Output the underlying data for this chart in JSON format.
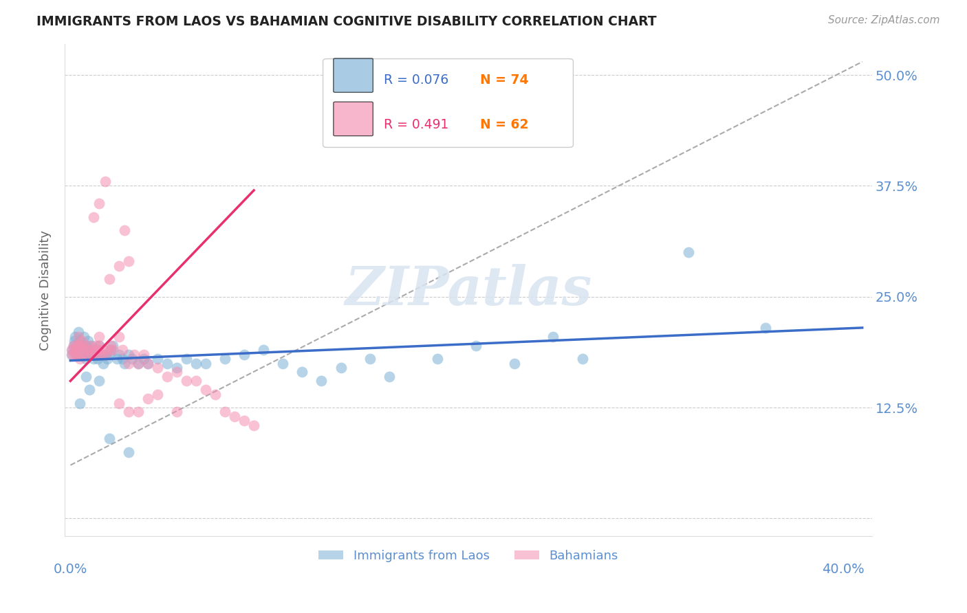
{
  "title": "IMMIGRANTS FROM LAOS VS BAHAMIAN COGNITIVE DISABILITY CORRELATION CHART",
  "source": "Source: ZipAtlas.com",
  "ylabel": "Cognitive Disability",
  "y_ticks": [
    0.0,
    0.125,
    0.25,
    0.375,
    0.5
  ],
  "y_tick_labels": [
    "",
    "12.5%",
    "25.0%",
    "37.5%",
    "50.0%"
  ],
  "x_min": -0.003,
  "x_max": 0.415,
  "y_min": -0.02,
  "y_max": 0.535,
  "watermark": "ZIPatlas",
  "legend_blue_label": "Immigrants from Laos",
  "legend_pink_label": "Bahamians",
  "legend_blue_r": "R = 0.076",
  "legend_blue_n": "N = 74",
  "legend_pink_r": "R = 0.491",
  "legend_pink_n": "N = 62",
  "blue_color": "#7BAFD4",
  "pink_color": "#F48FB1",
  "blue_line_color": "#3B6DC8",
  "pink_line_color": "#E83070",
  "axis_label_color": "#5B8FD0",
  "grid_color": "#CCCCCC",
  "title_color": "#222222",
  "blue_scatter_x": [
    0.0005,
    0.001,
    0.0015,
    0.002,
    0.0025,
    0.003,
    0.0035,
    0.004,
    0.004,
    0.005,
    0.005,
    0.006,
    0.006,
    0.007,
    0.007,
    0.008,
    0.008,
    0.009,
    0.009,
    0.01,
    0.01,
    0.011,
    0.011,
    0.012,
    0.012,
    0.013,
    0.013,
    0.014,
    0.015,
    0.015,
    0.016,
    0.017,
    0.018,
    0.019,
    0.02,
    0.021,
    0.022,
    0.024,
    0.025,
    0.027,
    0.028,
    0.03,
    0.032,
    0.035,
    0.038,
    0.04,
    0.045,
    0.05,
    0.055,
    0.06,
    0.065,
    0.07,
    0.08,
    0.09,
    0.1,
    0.11,
    0.12,
    0.13,
    0.14,
    0.155,
    0.165,
    0.19,
    0.21,
    0.23,
    0.25,
    0.265,
    0.32,
    0.36,
    0.005,
    0.008,
    0.01,
    0.015,
    0.02,
    0.03
  ],
  "blue_scatter_y": [
    0.185,
    0.19,
    0.195,
    0.2,
    0.205,
    0.185,
    0.19,
    0.195,
    0.21,
    0.185,
    0.2,
    0.19,
    0.195,
    0.185,
    0.205,
    0.18,
    0.195,
    0.185,
    0.2,
    0.185,
    0.19,
    0.185,
    0.195,
    0.19,
    0.18,
    0.185,
    0.19,
    0.18,
    0.185,
    0.195,
    0.185,
    0.175,
    0.185,
    0.18,
    0.185,
    0.19,
    0.195,
    0.18,
    0.185,
    0.18,
    0.175,
    0.185,
    0.18,
    0.175,
    0.18,
    0.175,
    0.18,
    0.175,
    0.17,
    0.18,
    0.175,
    0.175,
    0.18,
    0.185,
    0.19,
    0.175,
    0.165,
    0.155,
    0.17,
    0.18,
    0.16,
    0.18,
    0.195,
    0.175,
    0.205,
    0.18,
    0.3,
    0.215,
    0.13,
    0.16,
    0.145,
    0.155,
    0.09,
    0.075
  ],
  "pink_scatter_x": [
    0.0005,
    0.001,
    0.0015,
    0.002,
    0.0025,
    0.003,
    0.003,
    0.004,
    0.004,
    0.005,
    0.005,
    0.006,
    0.006,
    0.007,
    0.007,
    0.008,
    0.009,
    0.01,
    0.011,
    0.012,
    0.013,
    0.013,
    0.014,
    0.015,
    0.015,
    0.016,
    0.017,
    0.018,
    0.02,
    0.021,
    0.022,
    0.025,
    0.027,
    0.03,
    0.033,
    0.035,
    0.038,
    0.04,
    0.045,
    0.05,
    0.055,
    0.06,
    0.065,
    0.07,
    0.075,
    0.08,
    0.085,
    0.09,
    0.095,
    0.012,
    0.015,
    0.018,
    0.02,
    0.025,
    0.028,
    0.03,
    0.025,
    0.03,
    0.035,
    0.04,
    0.045,
    0.055
  ],
  "pink_scatter_y": [
    0.19,
    0.185,
    0.195,
    0.185,
    0.19,
    0.195,
    0.185,
    0.195,
    0.205,
    0.195,
    0.18,
    0.2,
    0.185,
    0.19,
    0.195,
    0.185,
    0.19,
    0.195,
    0.185,
    0.19,
    0.195,
    0.185,
    0.19,
    0.195,
    0.205,
    0.185,
    0.19,
    0.185,
    0.19,
    0.195,
    0.19,
    0.205,
    0.19,
    0.175,
    0.185,
    0.175,
    0.185,
    0.175,
    0.17,
    0.16,
    0.165,
    0.155,
    0.155,
    0.145,
    0.14,
    0.12,
    0.115,
    0.11,
    0.105,
    0.34,
    0.355,
    0.38,
    0.27,
    0.285,
    0.325,
    0.29,
    0.13,
    0.12,
    0.12,
    0.135,
    0.14,
    0.12
  ],
  "blue_line_x": [
    0.0,
    0.41
  ],
  "blue_line_y": [
    0.178,
    0.215
  ],
  "pink_line_x": [
    0.0,
    0.095
  ],
  "pink_line_y": [
    0.155,
    0.37
  ],
  "diag_line_x": [
    0.0,
    0.41
  ],
  "diag_line_y": [
    0.06,
    0.515
  ]
}
